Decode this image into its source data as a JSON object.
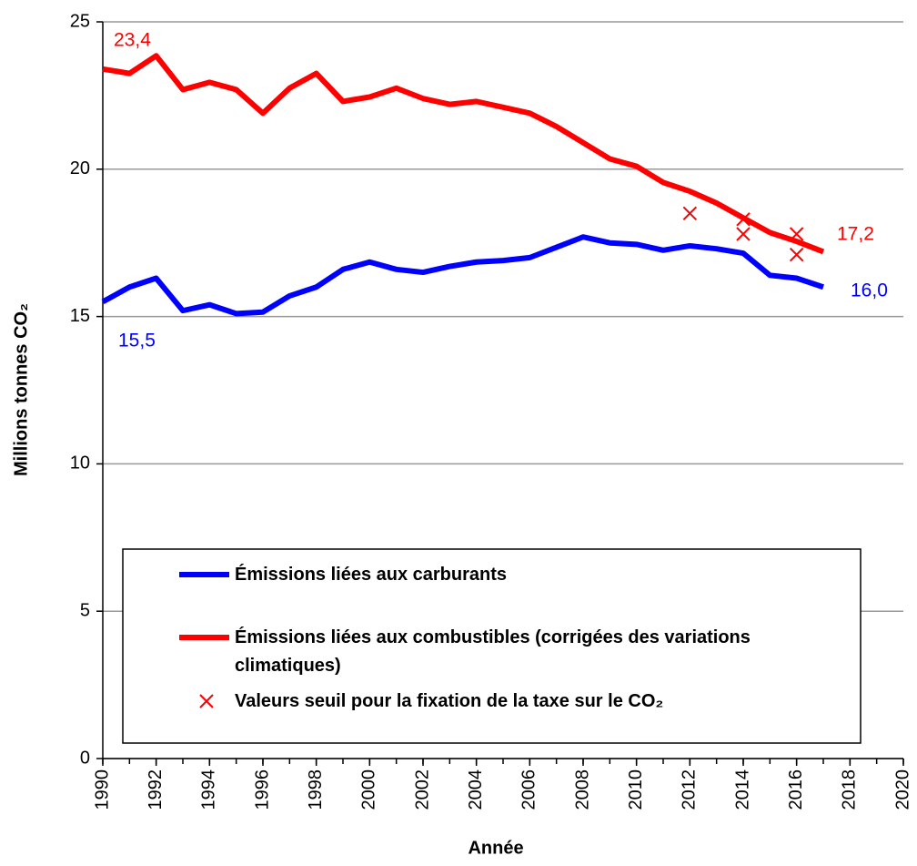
{
  "chart_data": {
    "type": "line",
    "x_label": "Année",
    "y_label": "Millions tonnes CO₂",
    "x": [
      1990,
      1991,
      1992,
      1993,
      1994,
      1995,
      1996,
      1997,
      1998,
      1999,
      2000,
      2001,
      2002,
      2003,
      2004,
      2005,
      2006,
      2007,
      2008,
      2009,
      2010,
      2011,
      2012,
      2013,
      2014,
      2015,
      2016,
      2017
    ],
    "series": [
      {
        "name": "Émissions liées aux carburants",
        "color": "#0000ff",
        "values": [
          15.5,
          16.0,
          16.3,
          15.2,
          15.4,
          15.1,
          15.15,
          15.7,
          16.0,
          16.6,
          16.85,
          16.6,
          16.5,
          16.7,
          16.85,
          16.9,
          17.0,
          17.35,
          17.7,
          17.5,
          17.45,
          17.25,
          17.4,
          17.3,
          17.15,
          16.4,
          16.3,
          16.0
        ],
        "value_labels": [
          "15,5",
          null,
          null,
          null,
          null,
          null,
          null,
          null,
          null,
          null,
          null,
          null,
          null,
          null,
          null,
          null,
          null,
          null,
          null,
          null,
          null,
          null,
          null,
          null,
          null,
          null,
          null,
          "16,0"
        ]
      },
      {
        "name": "Émissions liées aux combustibles (corrigées des variations climatiques)",
        "color": "#ff0000",
        "values": [
          23.4,
          23.25,
          23.85,
          22.7,
          22.95,
          22.7,
          21.9,
          22.75,
          23.25,
          22.3,
          22.45,
          22.75,
          22.4,
          22.2,
          22.3,
          22.1,
          21.9,
          21.45,
          20.9,
          20.35,
          20.1,
          19.55,
          19.25,
          18.85,
          18.35,
          17.85,
          17.55,
          17.2
        ],
        "value_labels": [
          "23,4",
          null,
          null,
          null,
          null,
          null,
          null,
          null,
          null,
          null,
          null,
          null,
          null,
          null,
          null,
          null,
          null,
          null,
          null,
          null,
          null,
          null,
          null,
          null,
          null,
          null,
          null,
          "17,2"
        ]
      },
      {
        "name": "Valeurs seuil pour la fixation de la taxe sur le CO₂",
        "color": "#ff0000",
        "type": "scatter",
        "x": [
          2012,
          2014,
          2014,
          2016,
          2016
        ],
        "values": [
          18.5,
          18.3,
          17.8,
          17.8,
          17.1
        ]
      }
    ],
    "xlim": [
      1990,
      2020
    ],
    "xticks": [
      1990,
      1992,
      1994,
      1996,
      1998,
      2000,
      2002,
      2004,
      2006,
      2008,
      2010,
      2012,
      2014,
      2016,
      2018,
      2020
    ],
    "ylim": [
      0,
      25
    ],
    "yticks": [
      0,
      5,
      10,
      15,
      20,
      25
    ],
    "grid": true
  }
}
